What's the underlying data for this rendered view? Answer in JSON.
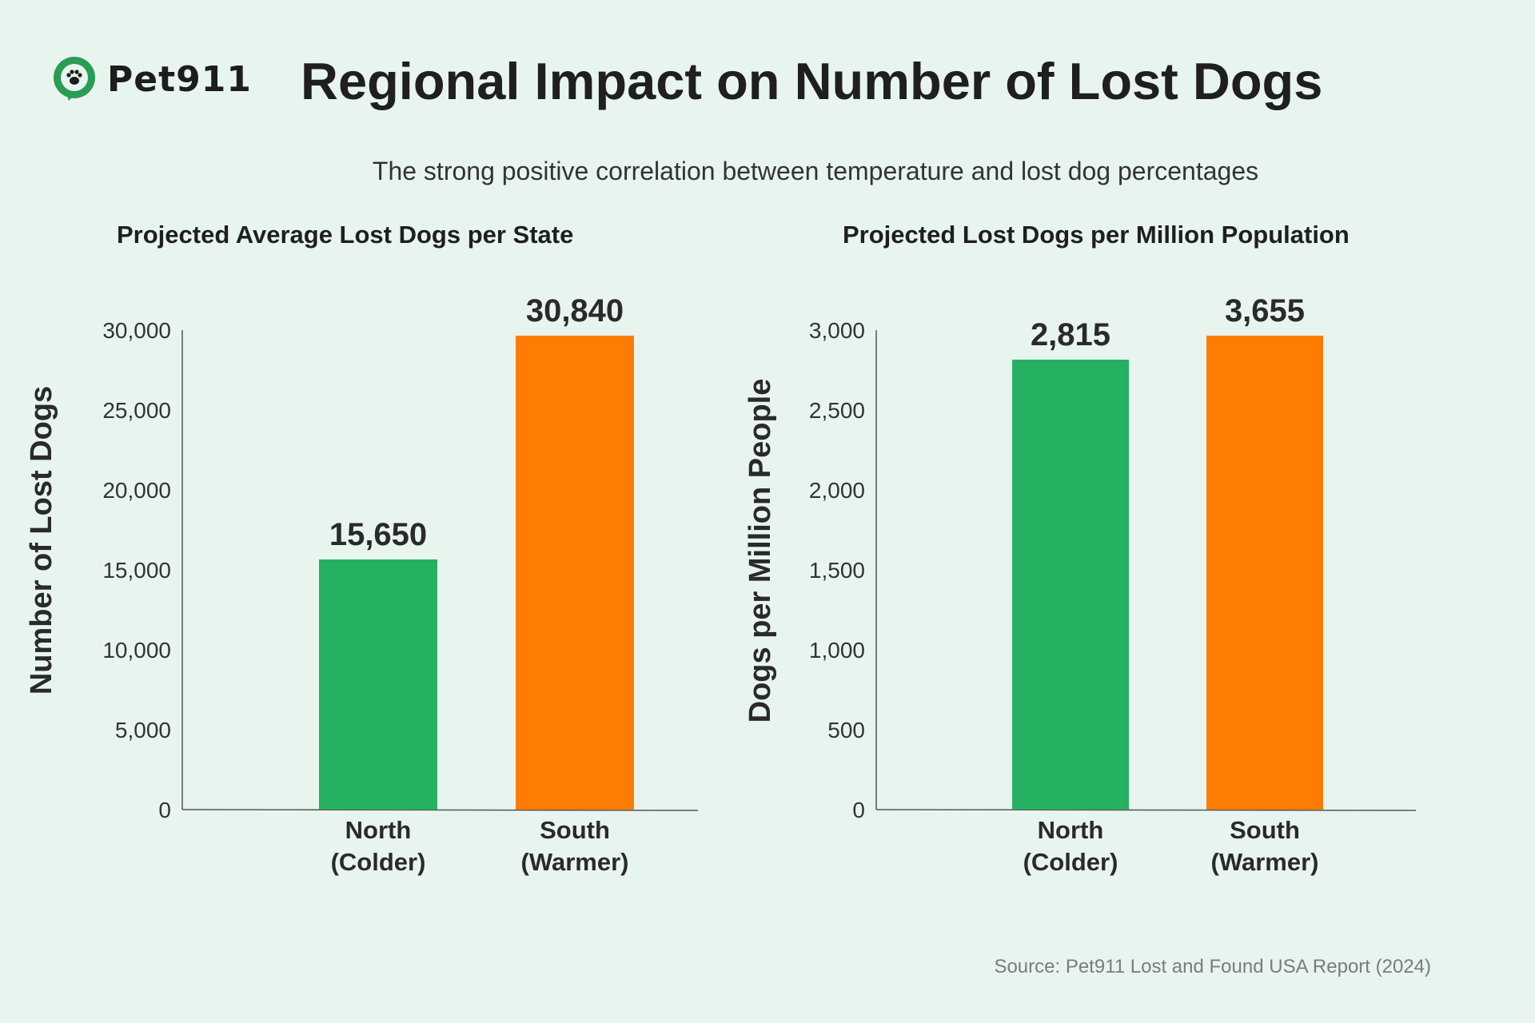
{
  "brand": {
    "name": "Pet911",
    "accent": "#2a9d55"
  },
  "header": {
    "title": "Regional Impact on Number of Lost Dogs",
    "subtitle": "The strong positive correlation between temperature and lost dog percentages"
  },
  "footer": {
    "source": "Source: Pet911 Lost and Found USA Report (2024)"
  },
  "colors": {
    "north": "#26b062",
    "south": "#fe7c03",
    "axis": "#555555",
    "text": "#222222"
  },
  "chart_data": [
    {
      "type": "bar",
      "title": "Projected Average Lost Dogs per State",
      "xlabel": "",
      "ylabel": "Number of Lost Dogs",
      "categories": [
        [
          "North",
          "(Colder)"
        ],
        [
          "South",
          "(Warmer)"
        ]
      ],
      "values": [
        15650,
        30840
      ],
      "value_labels": [
        "15,650",
        "30,840"
      ],
      "yticks": [
        0,
        5000,
        10000,
        15000,
        20000,
        25000,
        30000
      ],
      "ytick_labels": [
        "0",
        "5,000",
        "10,000",
        "15,000",
        "20,000",
        "25,000",
        "30,000"
      ],
      "ylim": [
        0,
        30000
      ],
      "grid": false
    },
    {
      "type": "bar",
      "title": "Projected Lost Dogs per Million Population",
      "xlabel": "",
      "ylabel": "Dogs per Million People",
      "categories": [
        [
          "North",
          "(Colder)"
        ],
        [
          "South",
          "(Warmer)"
        ]
      ],
      "values": [
        2815,
        3655
      ],
      "value_labels": [
        "2,815",
        "3,655"
      ],
      "yticks": [
        0,
        500,
        1000,
        1500,
        2000,
        2500,
        3000
      ],
      "ytick_labels": [
        "0",
        "500",
        "1,000",
        "1,500",
        "2,000",
        "2,500",
        "3,000"
      ],
      "ylim": [
        0,
        3000
      ],
      "grid": false
    }
  ]
}
